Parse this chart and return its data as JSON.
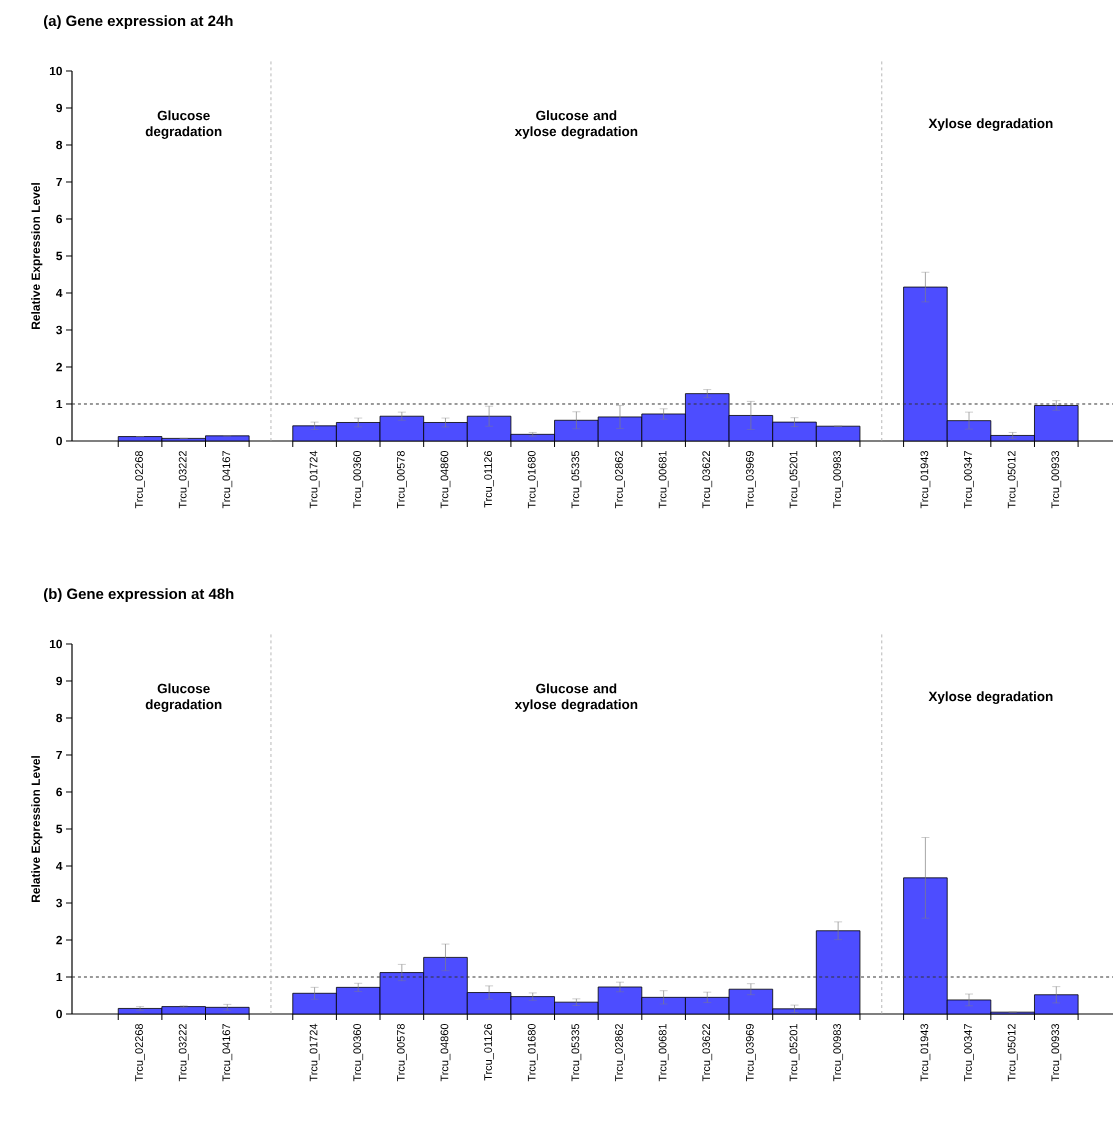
{
  "chart_data": [
    {
      "type": "bar",
      "title": "(a) Gene expression at 24h",
      "ylabel": "Relative Expression Level",
      "categories": [
        "Trcu_02268",
        "Trcu_03222",
        "Trcu_04167",
        null,
        "Trcu_01724",
        "Trcu_00360",
        "Trcu_00578",
        "Trcu_04860",
        "Trcu_01126",
        "Trcu_01680",
        "Trcu_05335",
        "Trcu_02862",
        "Trcu_00681",
        "Trcu_03622",
        "Trcu_03969",
        "Trcu_05201",
        "Trcu_00983",
        null,
        "Trcu_01943",
        "Trcu_00347",
        "Trcu_05012",
        "Trcu_00933"
      ],
      "values": [
        0.12,
        0.07,
        0.14,
        null,
        0.41,
        0.5,
        0.67,
        0.5,
        0.67,
        0.18,
        0.56,
        0.65,
        0.73,
        1.28,
        0.69,
        0.51,
        0.4,
        null,
        4.16,
        0.55,
        0.15,
        0.96
      ],
      "errors": [
        null,
        null,
        null,
        null,
        0.1,
        0.12,
        0.11,
        0.12,
        0.27,
        0.05,
        0.23,
        0.31,
        0.14,
        0.11,
        0.38,
        0.12,
        null,
        null,
        0.4,
        0.23,
        0.08,
        0.13
      ],
      "color": "#4d4dff",
      "ylim": [
        0,
        10
      ],
      "yticks": [
        0,
        1,
        2,
        3,
        4,
        5,
        6,
        7,
        8,
        9,
        10
      ],
      "ref_lines": [
        {
          "axis": "y",
          "value": 1,
          "color": "#333333",
          "line_style": "dashed"
        }
      ],
      "annotations": [
        "Glucose degradation",
        "Glucose and xylose degradation",
        "Xylose degradation"
      ]
    },
    {
      "type": "bar",
      "title": "(b) Gene expression at 48h",
      "ylabel": "Relative Expression Level",
      "categories": [
        "Trcu_02268",
        "Trcu_03222",
        "Trcu_04167",
        null,
        "Trcu_01724",
        "Trcu_00360",
        "Trcu_00578",
        "Trcu_04860",
        "Trcu_01126",
        "Trcu_01680",
        "Trcu_05335",
        "Trcu_02862",
        "Trcu_00681",
        "Trcu_03622",
        "Trcu_03969",
        "Trcu_05201",
        "Trcu_00983",
        null,
        "Trcu_01943",
        "Trcu_00347",
        "Trcu_05012",
        "Trcu_00933"
      ],
      "values": [
        0.15,
        0.2,
        0.18,
        null,
        0.56,
        0.72,
        1.12,
        1.53,
        0.58,
        0.47,
        0.32,
        0.73,
        0.45,
        0.45,
        0.67,
        0.14,
        2.25,
        null,
        3.68,
        0.38,
        0.05,
        0.52
      ],
      "errors": [
        0.05,
        0.02,
        0.08,
        null,
        0.16,
        0.11,
        0.22,
        0.36,
        0.18,
        0.1,
        0.09,
        0.13,
        0.18,
        0.14,
        0.15,
        0.1,
        0.24,
        null,
        1.09,
        0.16,
        null,
        0.22
      ],
      "color": "#4d4dff",
      "ylim": [
        0,
        10
      ],
      "yticks": [
        0,
        1,
        2,
        3,
        4,
        5,
        6,
        7,
        8,
        9,
        10
      ],
      "ref_lines": [
        {
          "axis": "y",
          "value": 1,
          "color": "#333333",
          "line_style": "dashed"
        }
      ],
      "annotations": [
        "Glucose degradation",
        "Glucose and xylose degradation",
        "Xylose degradation"
      ]
    }
  ]
}
